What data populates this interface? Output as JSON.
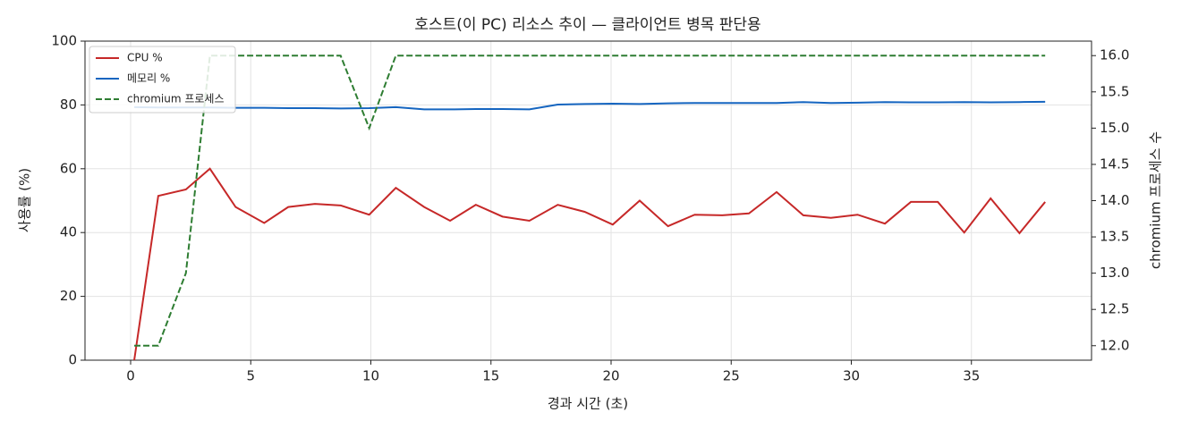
{
  "chart_data": {
    "type": "line",
    "title": "호스트(이 PC) 리소스 추이 — 클라이언트 병목 판단용",
    "x_label": "경과 시간 (초)",
    "y_label": "사용률 (%)",
    "y2_label": "chromium 프로세스 수",
    "x": [
      0.15,
      1.15,
      2.3,
      3.3,
      4.37,
      5.56,
      6.56,
      7.67,
      8.74,
      9.93,
      11.04,
      12.22,
      13.3,
      14.37,
      15.48,
      16.6,
      17.78,
      18.9,
      20.07,
      21.19,
      22.37,
      23.48,
      24.63,
      25.74,
      26.89,
      28.0,
      29.15,
      30.26,
      31.4,
      32.48,
      33.6,
      34.7,
      35.8,
      37.0,
      38.07
    ],
    "series": [
      {
        "name": "CPU %",
        "color": "#c62828",
        "dash": false,
        "values": [
          0,
          51.5,
          53.5,
          60,
          48,
          43,
          48,
          49,
          48.5,
          45.6,
          54,
          48,
          43.7,
          48.7,
          45,
          43.7,
          48.7,
          46.5,
          42.5,
          50,
          42,
          45.6,
          45.4,
          46,
          52.7,
          45.4,
          44.6,
          45.6,
          42.8,
          49.6,
          49.6,
          40,
          50.7,
          39.8,
          49.6
        ]
      },
      {
        "name": "메모리 %",
        "color": "#1565c0",
        "dash": false,
        "values": [
          79.3,
          79.2,
          79.2,
          79.2,
          79.1,
          79.1,
          79.0,
          79.0,
          78.9,
          79.0,
          79.3,
          78.6,
          78.6,
          78.7,
          78.7,
          78.6,
          80.1,
          80.3,
          80.4,
          80.3,
          80.5,
          80.6,
          80.6,
          80.6,
          80.6,
          80.9,
          80.6,
          80.7,
          80.9,
          80.8,
          80.8,
          80.9,
          80.8,
          80.9,
          81.0
        ]
      },
      {
        "name": "chromium 프로세스",
        "color": "#2e7d32",
        "dash": true,
        "axis": "y2",
        "values": [
          12,
          12,
          13,
          16,
          16,
          16,
          16,
          16,
          16,
          15,
          16,
          16,
          16,
          16,
          16,
          16,
          16,
          16,
          16,
          16,
          16,
          16,
          16,
          16,
          16,
          16,
          16,
          16,
          16,
          16,
          16,
          16,
          16,
          16,
          16
        ]
      }
    ],
    "xlim": [
      -1.9,
      40.0
    ],
    "xticks": [
      0,
      5,
      10,
      15,
      20,
      25,
      30,
      35
    ],
    "ylim": [
      0,
      100
    ],
    "yticks": [
      0,
      20,
      40,
      60,
      80,
      100
    ],
    "y2lim": [
      11.8,
      16.2
    ],
    "y2ticks": [
      {
        "value": 12,
        "label": "12.0"
      },
      12.5,
      {
        "value": 13,
        "label": "13.0"
      },
      13.5,
      {
        "value": 14,
        "label": "14.0"
      },
      14.5,
      {
        "value": 15,
        "label": "15.0"
      },
      15.5,
      {
        "value": 16,
        "label": "16.0"
      }
    ],
    "grid": true,
    "legend": "upper-left"
  }
}
